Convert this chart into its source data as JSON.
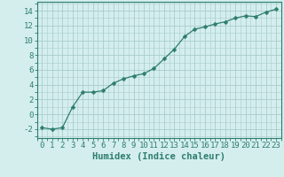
{
  "x": [
    0,
    1,
    2,
    3,
    4,
    5,
    6,
    7,
    8,
    9,
    10,
    11,
    12,
    13,
    14,
    15,
    16,
    17,
    18,
    19,
    20,
    21,
    22,
    23
  ],
  "y": [
    -1.8,
    -2.0,
    -1.8,
    1.0,
    3.0,
    3.0,
    3.2,
    4.2,
    4.8,
    5.2,
    5.5,
    6.2,
    7.5,
    8.8,
    10.5,
    11.5,
    11.8,
    12.2,
    12.5,
    13.0,
    13.3,
    13.2,
    13.8,
    14.2
  ],
  "line_color": "#2e7d6e",
  "marker": "D",
  "marker_size": 2.5,
  "bg_color": "#d4eeee",
  "grid_color": "#aacccc",
  "axis_color": "#2e7d6e",
  "xlabel": "Humidex (Indice chaleur)",
  "xlim": [
    -0.5,
    23.5
  ],
  "ylim": [
    -3.2,
    15.2
  ],
  "yticks": [
    -2,
    0,
    2,
    4,
    6,
    8,
    10,
    12,
    14
  ],
  "xticks": [
    0,
    1,
    2,
    3,
    4,
    5,
    6,
    7,
    8,
    9,
    10,
    11,
    12,
    13,
    14,
    15,
    16,
    17,
    18,
    19,
    20,
    21,
    22,
    23
  ],
  "xtick_labels": [
    "0",
    "1",
    "2",
    "3",
    "4",
    "5",
    "6",
    "7",
    "8",
    "9",
    "10",
    "11",
    "12",
    "13",
    "14",
    "15",
    "16",
    "17",
    "18",
    "19",
    "20",
    "21",
    "22",
    "23"
  ],
  "font_size": 6.5,
  "xlabel_fontsize": 7.5
}
